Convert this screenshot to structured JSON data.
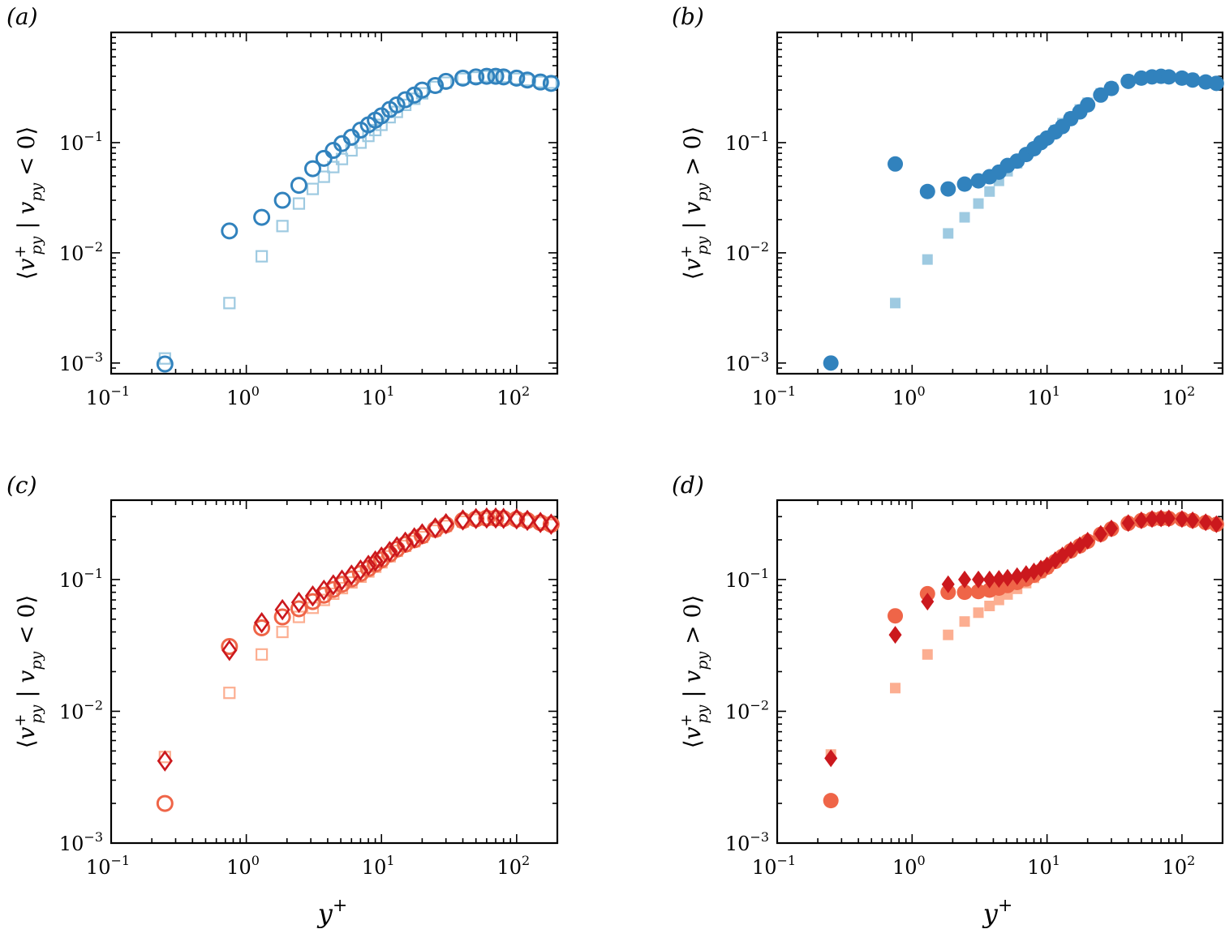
{
  "figure": {
    "x_axis_label": {
      "base": "y",
      "sup": "+"
    },
    "y_axis_label_parts": {
      "open": "⟨",
      "v": "v",
      "sup": "+",
      "sub": "py",
      "bar": " | ",
      "v2": "v",
      "sub2": "py",
      "close": "⟩"
    },
    "x_tick_labels": [
      {
        "base": "10",
        "exp": "−1"
      },
      {
        "base": "10",
        "exp": "0"
      },
      {
        "base": "10",
        "exp": "1"
      },
      {
        "base": "10",
        "exp": "2"
      }
    ],
    "y_tick_labels": [
      {
        "base": "10",
        "exp": "−3"
      },
      {
        "base": "10",
        "exp": "−2"
      },
      {
        "base": "10",
        "exp": "−1"
      }
    ]
  },
  "chart_data": [
    {
      "panel": "(a)",
      "type": "scatter",
      "xscale": "log",
      "yscale": "log",
      "xlim": [
        0.1,
        200
      ],
      "ylim": [
        0.0008,
        1.0
      ],
      "ylabel_condition": " < 0",
      "series": [
        {
          "name": "reference-squares",
          "marker": "square",
          "filled": false,
          "color": "#9ecae1",
          "x": [
            0.25,
            0.75,
            1.3,
            1.85,
            2.45,
            3.1,
            3.75,
            4.4,
            5.1,
            6.0,
            7.0,
            8.0,
            9.0,
            10.0,
            11.5,
            13.0,
            15.0,
            17.5,
            20.0,
            25.0,
            30.0,
            40.0,
            50.0,
            60.0,
            70.0,
            80.0,
            100.0,
            120.0,
            150.0,
            180.0
          ],
          "y": [
            0.0011,
            0.0035,
            0.0093,
            0.0175,
            0.028,
            0.038,
            0.049,
            0.06,
            0.071,
            0.085,
            0.1,
            0.115,
            0.13,
            0.145,
            0.17,
            0.19,
            0.22,
            0.25,
            0.28,
            0.32,
            0.35,
            0.38,
            0.39,
            0.4,
            0.4,
            0.395,
            0.38,
            0.37,
            0.355,
            0.35
          ]
        },
        {
          "name": "open-circles",
          "marker": "circle",
          "filled": false,
          "color": "#3182bd",
          "x": [
            0.25,
            0.75,
            1.3,
            1.85,
            2.45,
            3.1,
            3.75,
            4.4,
            5.1,
            6.0,
            7.0,
            8.0,
            9.0,
            10.0,
            11.5,
            13.0,
            15.0,
            17.5,
            20.0,
            25.0,
            30.0,
            40.0,
            50.0,
            60.0,
            70.0,
            80.0,
            100.0,
            120.0,
            150.0,
            180.0
          ],
          "y": [
            0.00098,
            0.0158,
            0.021,
            0.03,
            0.041,
            0.058,
            0.072,
            0.085,
            0.098,
            0.112,
            0.13,
            0.145,
            0.16,
            0.175,
            0.2,
            0.22,
            0.245,
            0.27,
            0.3,
            0.33,
            0.36,
            0.385,
            0.395,
            0.4,
            0.4,
            0.395,
            0.385,
            0.37,
            0.355,
            0.345
          ]
        }
      ]
    },
    {
      "panel": "(b)",
      "type": "scatter",
      "xscale": "log",
      "yscale": "log",
      "xlim": [
        0.1,
        200
      ],
      "ylim": [
        0.0008,
        1.0
      ],
      "ylabel_condition": " > 0",
      "series": [
        {
          "name": "reference-squares",
          "marker": "square",
          "filled": true,
          "color": "#9ecae1",
          "x": [
            0.25,
            0.75,
            1.3,
            1.85,
            2.45,
            3.1,
            3.75,
            4.4,
            5.1,
            6.0,
            7.0,
            8.0,
            9.0,
            10.0,
            11.5,
            13.0,
            15.0,
            17.5,
            20.0,
            25.0,
            30.0,
            40.0,
            50.0,
            60.0,
            70.0,
            80.0,
            100.0,
            120.0,
            150.0,
            180.0
          ],
          "y": [
            0.001,
            0.0035,
            0.0087,
            0.015,
            0.021,
            0.028,
            0.036,
            0.045,
            0.055,
            0.065,
            0.078,
            0.09,
            0.1,
            0.11,
            0.13,
            0.15,
            0.17,
            0.2,
            0.23,
            0.28,
            0.32,
            0.37,
            0.39,
            0.4,
            0.4,
            0.4,
            0.39,
            0.38,
            0.36,
            0.35
          ]
        },
        {
          "name": "filled-circles",
          "marker": "circle",
          "filled": true,
          "color": "#3182bd",
          "x": [
            0.25,
            0.75,
            1.3,
            1.85,
            2.45,
            3.1,
            3.75,
            4.4,
            5.1,
            6.0,
            7.0,
            8.0,
            9.0,
            10.0,
            11.5,
            13.0,
            15.0,
            17.5,
            20.0,
            25.0,
            30.0,
            40.0,
            50.0,
            60.0,
            70.0,
            80.0,
            100.0,
            120.0,
            150.0,
            180.0
          ],
          "y": [
            0.001,
            0.064,
            0.036,
            0.038,
            0.042,
            0.045,
            0.049,
            0.054,
            0.062,
            0.068,
            0.078,
            0.088,
            0.1,
            0.11,
            0.125,
            0.14,
            0.165,
            0.19,
            0.22,
            0.27,
            0.31,
            0.36,
            0.385,
            0.395,
            0.4,
            0.395,
            0.385,
            0.37,
            0.355,
            0.345
          ]
        }
      ]
    },
    {
      "panel": "(c)",
      "type": "scatter",
      "xscale": "log",
      "yscale": "log",
      "xlim": [
        0.1,
        200
      ],
      "ylim": [
        0.001,
        0.4
      ],
      "ylabel_condition": " < 0",
      "series": [
        {
          "name": "reference-squares",
          "marker": "square",
          "filled": false,
          "color": "#fcae91",
          "x": [
            0.25,
            0.75,
            1.3,
            1.85,
            2.45,
            3.1,
            3.75,
            4.4,
            5.1,
            6.0,
            7.0,
            8.0,
            9.0,
            10.0,
            11.5,
            13.0,
            15.0,
            17.5,
            20.0,
            25.0,
            30.0,
            40.0,
            50.0,
            60.0,
            70.0,
            80.0,
            100.0,
            120.0,
            150.0,
            180.0
          ],
          "y": [
            0.0045,
            0.0138,
            0.027,
            0.04,
            0.052,
            0.061,
            0.07,
            0.078,
            0.086,
            0.095,
            0.105,
            0.115,
            0.125,
            0.135,
            0.15,
            0.165,
            0.18,
            0.195,
            0.21,
            0.235,
            0.255,
            0.275,
            0.285,
            0.29,
            0.29,
            0.29,
            0.285,
            0.28,
            0.27,
            0.26
          ]
        },
        {
          "name": "open-circles",
          "marker": "circle",
          "filled": false,
          "color": "#ef6548",
          "x": [
            0.25,
            0.75,
            1.3,
            1.85,
            2.45,
            3.1,
            3.75,
            4.4,
            5.1,
            6.0,
            7.0,
            8.0,
            9.0,
            10.0,
            11.5,
            13.0,
            15.0,
            17.5,
            20.0,
            25.0,
            30.0,
            40.0,
            50.0,
            60.0,
            70.0,
            80.0,
            100.0,
            120.0,
            150.0,
            180.0
          ],
          "y": [
            0.002,
            0.031,
            0.043,
            0.052,
            0.06,
            0.068,
            0.076,
            0.084,
            0.092,
            0.101,
            0.111,
            0.121,
            0.131,
            0.141,
            0.156,
            0.17,
            0.185,
            0.2,
            0.215,
            0.24,
            0.26,
            0.28,
            0.288,
            0.292,
            0.292,
            0.29,
            0.287,
            0.28,
            0.27,
            0.262
          ]
        },
        {
          "name": "open-diamonds",
          "marker": "diamond",
          "filled": false,
          "color": "#cb181d",
          "x": [
            0.25,
            0.75,
            1.3,
            1.85,
            2.45,
            3.1,
            3.75,
            4.4,
            5.1,
            6.0,
            7.0,
            8.0,
            9.0,
            10.0,
            11.5,
            13.0,
            15.0,
            17.5,
            20.0,
            25.0,
            30.0,
            40.0,
            50.0,
            60.0,
            70.0,
            80.0,
            100.0,
            120.0,
            150.0,
            180.0
          ],
          "y": [
            0.0042,
            0.029,
            0.047,
            0.059,
            0.067,
            0.075,
            0.083,
            0.091,
            0.099,
            0.108,
            0.118,
            0.128,
            0.138,
            0.148,
            0.163,
            0.177,
            0.192,
            0.207,
            0.222,
            0.246,
            0.265,
            0.283,
            0.29,
            0.293,
            0.293,
            0.291,
            0.288,
            0.281,
            0.271,
            0.263
          ]
        }
      ]
    },
    {
      "panel": "(d)",
      "type": "scatter",
      "xscale": "log",
      "yscale": "log",
      "xlim": [
        0.1,
        200
      ],
      "ylim": [
        0.001,
        0.4
      ],
      "ylabel_condition": " > 0",
      "series": [
        {
          "name": "reference-squares",
          "marker": "square",
          "filled": true,
          "color": "#fcae91",
          "x": [
            0.25,
            0.75,
            1.3,
            1.85,
            2.45,
            3.1,
            3.75,
            4.4,
            5.1,
            6.0,
            7.0,
            8.0,
            9.0,
            10.0,
            11.5,
            13.0,
            15.0,
            17.5,
            20.0,
            25.0,
            30.0,
            40.0,
            50.0,
            60.0,
            70.0,
            80.0,
            100.0,
            120.0,
            150.0,
            180.0
          ],
          "y": [
            0.0047,
            0.015,
            0.027,
            0.038,
            0.048,
            0.056,
            0.063,
            0.07,
            0.077,
            0.085,
            0.094,
            0.103,
            0.112,
            0.121,
            0.135,
            0.148,
            0.163,
            0.178,
            0.193,
            0.218,
            0.24,
            0.265,
            0.278,
            0.285,
            0.288,
            0.288,
            0.285,
            0.278,
            0.27,
            0.26
          ]
        },
        {
          "name": "filled-circles",
          "marker": "circle",
          "filled": true,
          "color": "#ef6548",
          "x": [
            0.25,
            0.75,
            1.3,
            1.85,
            2.45,
            3.1,
            3.75,
            4.4,
            5.1,
            6.0,
            7.0,
            8.0,
            9.0,
            10.0,
            11.5,
            13.0,
            15.0,
            17.5,
            20.0,
            25.0,
            30.0,
            40.0,
            50.0,
            60.0,
            70.0,
            80.0,
            100.0,
            120.0,
            150.0,
            180.0
          ],
          "y": [
            0.0021,
            0.053,
            0.078,
            0.08,
            0.08,
            0.081,
            0.083,
            0.086,
            0.09,
            0.095,
            0.101,
            0.108,
            0.116,
            0.124,
            0.137,
            0.15,
            0.165,
            0.18,
            0.195,
            0.22,
            0.242,
            0.267,
            0.28,
            0.287,
            0.29,
            0.29,
            0.287,
            0.28,
            0.271,
            0.262
          ]
        },
        {
          "name": "filled-diamonds",
          "marker": "diamond",
          "filled": true,
          "color": "#cb181d",
          "x": [
            0.25,
            0.75,
            1.3,
            1.85,
            2.45,
            3.1,
            3.75,
            4.4,
            5.1,
            6.0,
            7.0,
            8.0,
            9.0,
            10.0,
            11.5,
            13.0,
            15.0,
            17.5,
            20.0,
            25.0,
            30.0,
            40.0,
            50.0,
            60.0,
            70.0,
            80.0,
            100.0,
            120.0,
            150.0,
            180.0
          ],
          "y": [
            0.0044,
            0.038,
            0.068,
            0.092,
            0.1,
            0.1,
            0.1,
            0.101,
            0.103,
            0.106,
            0.11,
            0.115,
            0.121,
            0.128,
            0.14,
            0.152,
            0.167,
            0.182,
            0.197,
            0.222,
            0.244,
            0.268,
            0.281,
            0.288,
            0.291,
            0.291,
            0.288,
            0.281,
            0.272,
            0.263
          ]
        }
      ]
    }
  ]
}
